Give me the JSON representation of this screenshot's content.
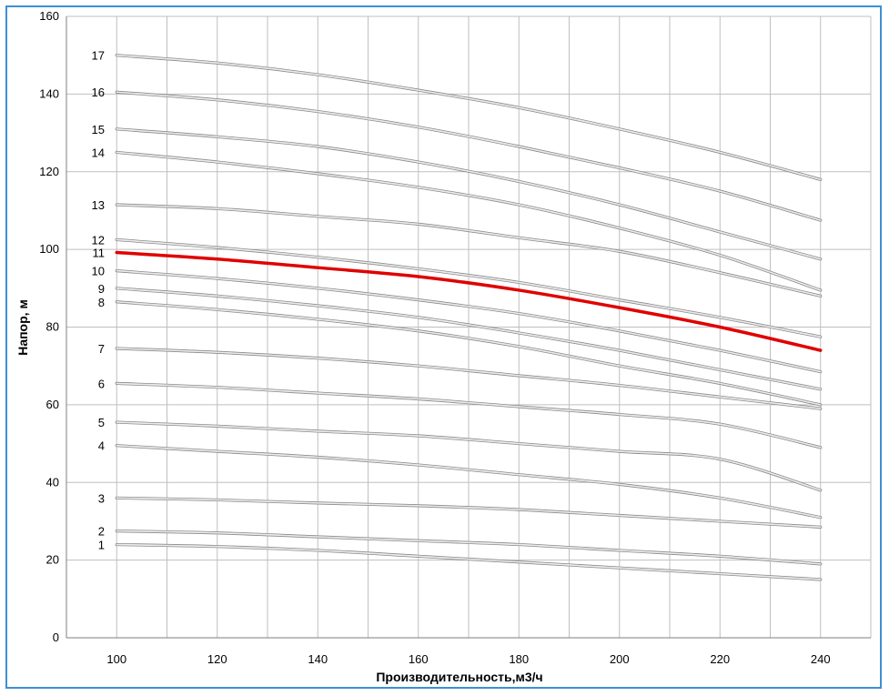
{
  "chart_data": {
    "type": "line",
    "title": "",
    "xlabel": "Производительность,м3/ч",
    "ylabel": "Напор, м",
    "xlim": [
      90,
      250
    ],
    "ylim": [
      0,
      160
    ],
    "x_ticks": [
      100,
      120,
      140,
      160,
      180,
      200,
      220,
      240
    ],
    "y_ticks": [
      0,
      20,
      40,
      60,
      80,
      100,
      120,
      140,
      160
    ],
    "x_grid_step": 10,
    "y_grid_step": 20,
    "grid": true,
    "legend": "none",
    "x": [
      100,
      120,
      140,
      160,
      180,
      200,
      220,
      240
    ],
    "series": [
      {
        "name": "1",
        "values": [
          24,
          23.5,
          22.5,
          21,
          19.5,
          18,
          16.5,
          15
        ]
      },
      {
        "name": "2",
        "values": [
          27.5,
          27,
          26,
          25,
          24,
          22.5,
          21,
          19
        ]
      },
      {
        "name": "3",
        "values": [
          36,
          35.5,
          34.7,
          34,
          33,
          31.5,
          30,
          28.5
        ]
      },
      {
        "name": "4",
        "values": [
          49.5,
          48,
          46.5,
          44.5,
          42,
          39.5,
          36,
          31
        ]
      },
      {
        "name": "5",
        "values": [
          55.5,
          54.5,
          53.2,
          52,
          50,
          48,
          46,
          38
        ]
      },
      {
        "name": "6",
        "values": [
          65.5,
          64.5,
          63,
          61.5,
          59.5,
          57.5,
          55,
          49
        ]
      },
      {
        "name": "7",
        "values": [
          74.5,
          73.5,
          72,
          70,
          67.5,
          65,
          62,
          59
        ]
      },
      {
        "name": "8",
        "values": [
          86.5,
          84.5,
          82,
          79,
          75,
          70,
          65.5,
          60
        ]
      },
      {
        "name": "9",
        "values": [
          90,
          88,
          85.5,
          82.5,
          78.5,
          74,
          69,
          64
        ]
      },
      {
        "name": "10",
        "values": [
          94.5,
          92.5,
          90,
          87,
          83.5,
          79,
          74,
          68.5
        ]
      },
      {
        "name": "11",
        "values": [
          99.2,
          97.5,
          95.3,
          93,
          89.5,
          85,
          80,
          74
        ],
        "highlight": true,
        "color": "#e00000"
      },
      {
        "name": "12",
        "values": [
          102.5,
          100.5,
          98,
          95,
          91.5,
          87,
          82.5,
          77.5
        ]
      },
      {
        "name": "13",
        "values": [
          111.5,
          110.5,
          108.5,
          106.5,
          103,
          99.5,
          94,
          88
        ]
      },
      {
        "name": "14",
        "values": [
          125,
          122.5,
          119.5,
          116,
          111.5,
          105.5,
          98.5,
          89.5
        ]
      },
      {
        "name": "15",
        "values": [
          131,
          129,
          126.5,
          122.5,
          117.5,
          111.5,
          104.5,
          97.5
        ]
      },
      {
        "name": "16",
        "values": [
          140.5,
          138.5,
          135.5,
          131.5,
          126.5,
          121,
          115,
          107.5
        ]
      },
      {
        "name": "17",
        "values": [
          150,
          148,
          145,
          141,
          136.5,
          131,
          125,
          118
        ]
      }
    ],
    "curve_color": "#c8c8c8",
    "highlight_color": "#e00000",
    "grid_color": "#bfbfbf",
    "frame_color": "#3c8fd6"
  }
}
